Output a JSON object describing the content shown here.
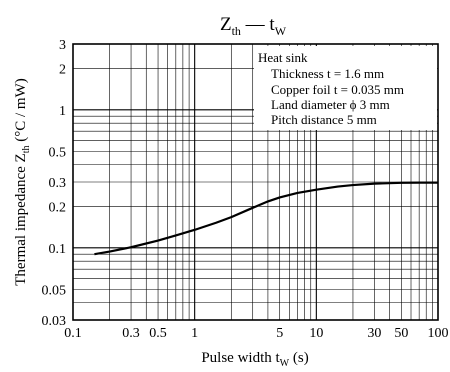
{
  "chart_data": {
    "type": "line",
    "title": "Z",
    "title_sub": "th",
    "title_dash": " — t",
    "title_sub2": "W",
    "xlabel": "Pulse width  t",
    "xlabel_sub": "W",
    "xlabel_unit": "  (s)",
    "ylabel": "Thermal impedance  Z",
    "ylabel_sub": "th",
    "ylabel_unit": "  (°C / mW)",
    "x_scale": "log",
    "y_scale": "log",
    "xlim": [
      0.1,
      100
    ],
    "ylim": [
      0.03,
      3
    ],
    "grid": true,
    "x_ticks": [
      {
        "value": 0.1,
        "label": "0.1"
      },
      {
        "value": 0.3,
        "label": "0.3"
      },
      {
        "value": 0.5,
        "label": "0.5"
      },
      {
        "value": 1,
        "label": "1"
      },
      {
        "value": 5,
        "label": "5"
      },
      {
        "value": 10,
        "label": "10"
      },
      {
        "value": 30,
        "label": "30"
      },
      {
        "value": 50,
        "label": "50"
      },
      {
        "value": 100,
        "label": "100"
      }
    ],
    "y_ticks": [
      {
        "value": 0.03,
        "label": "0.03"
      },
      {
        "value": 0.05,
        "label": "0.05"
      },
      {
        "value": 0.1,
        "label": "0.1"
      },
      {
        "value": 0.2,
        "label": "0.2"
      },
      {
        "value": 0.3,
        "label": "0.3"
      },
      {
        "value": 0.5,
        "label": "0.5"
      },
      {
        "value": 1,
        "label": "1"
      },
      {
        "value": 2,
        "label": "2"
      },
      {
        "value": 3,
        "label": "3"
      }
    ],
    "annotation": {
      "lines": [
        "Heat sink",
        "Thickness t = 1.6 mm",
        "Copper foil t = 0.035 mm",
        "Land diameter ϕ 3 mm",
        "Pitch distance 5 mm"
      ],
      "placement": "top-right"
    },
    "series": [
      {
        "x": [
          0.15,
          0.2,
          0.3,
          0.5,
          0.7,
          1,
          1.5,
          2,
          3,
          4,
          5,
          7,
          10,
          15,
          20,
          30,
          50,
          70,
          100
        ],
        "y": [
          0.09,
          0.094,
          0.101,
          0.113,
          0.123,
          0.135,
          0.152,
          0.167,
          0.195,
          0.217,
          0.232,
          0.25,
          0.264,
          0.278,
          0.285,
          0.292,
          0.296,
          0.297,
          0.297
        ]
      }
    ]
  }
}
